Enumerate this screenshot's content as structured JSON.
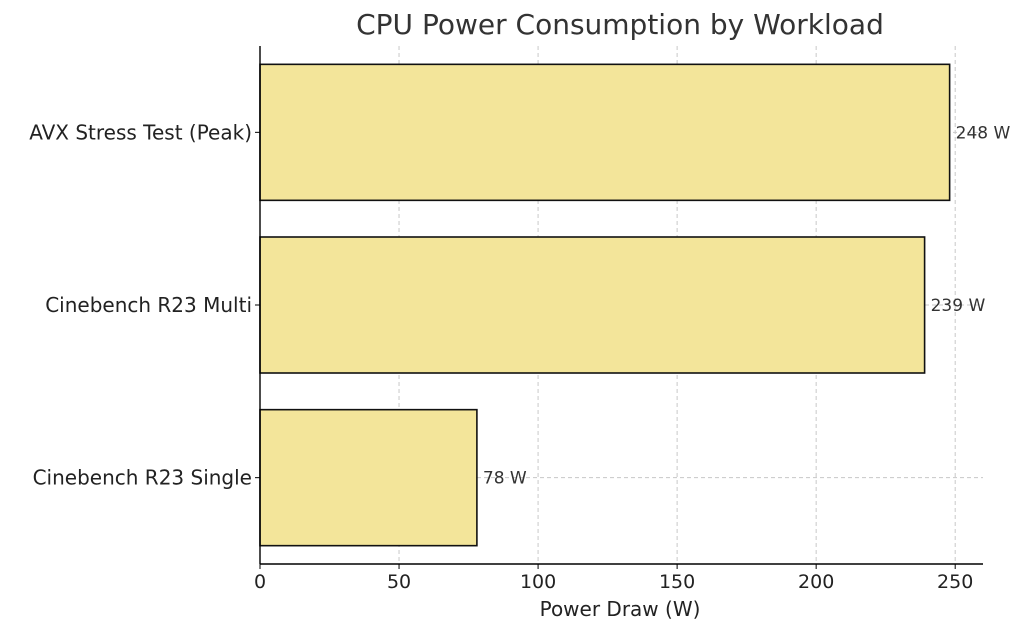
{
  "chart_data": {
    "type": "bar",
    "orientation": "horizontal",
    "title": "CPU Power Consumption by Workload",
    "xlabel": "Power Draw (W)",
    "ylabel": "",
    "categories": [
      "AVX Stress Test (Peak)",
      "Cinebench R23 Multi",
      "Cinebench R23 Single"
    ],
    "values": [
      248,
      239,
      78
    ],
    "value_labels": [
      "248 W",
      "239 W",
      "78 W"
    ],
    "xlim": [
      0,
      260
    ],
    "xticks": [
      0,
      50,
      100,
      150,
      200,
      250
    ],
    "xtick_labels": [
      "0",
      "50",
      "100",
      "150",
      "200",
      "250"
    ],
    "grid": true,
    "colors": {
      "bar_fill": "#f3e59a",
      "bar_stroke": "#111111",
      "grid": "#c8c8c8",
      "axis": "#000000",
      "text": "#222222"
    }
  }
}
